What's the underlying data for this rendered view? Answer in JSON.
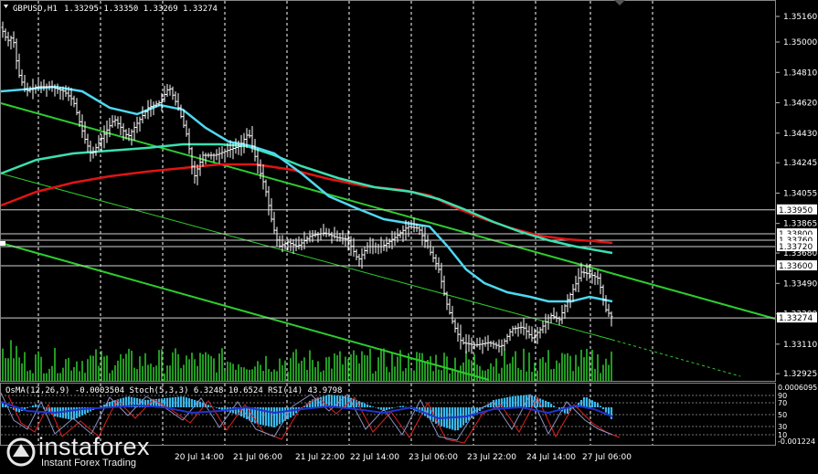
{
  "header": {
    "symbol": "GBPUSD,H1",
    "ohlc": "1.33295 1.33350 1.33269 1.33274"
  },
  "price_axis": {
    "ticks": [
      "1.35160",
      "1.35000",
      "1.34810",
      "1.34620",
      "1.34430",
      "1.34245",
      "1.34055",
      "1.33865",
      "1.33680",
      "1.33490",
      "1.33300",
      "1.33110",
      "1.32925"
    ],
    "levels": [
      {
        "value": "1.33950",
        "color": "#ffffff",
        "text": "#000000"
      },
      {
        "value": "1.33800",
        "color": "#ffffff",
        "text": "#000000"
      },
      {
        "value": "1.33760",
        "color": "#ffffff",
        "text": "#000000"
      },
      {
        "value": "1.33720",
        "color": "#ffffff",
        "text": "#000000"
      },
      {
        "value": "1.33600",
        "color": "#ffffff",
        "text": "#000000"
      },
      {
        "value": "1.33274",
        "color": "#ffffff",
        "text": "#000000"
      }
    ]
  },
  "indicator": {
    "label": "OsMA(12,26,9) -0.0003504  Stoch(5,3,3) 6.3248 10.6524  RSI(14) 43.9798",
    "scale": [
      "0.0006095",
      "90",
      "70",
      "50",
      "30",
      "10",
      "-0.001224"
    ]
  },
  "time_axis": {
    "labels": [
      "20 Jul 14:00",
      "21 Jul 06:00",
      "21 Jul 22:00",
      "22 Jul 14:00",
      "23 Jul 06:00",
      "23 Jul 22:00",
      "24 Jul 14:00",
      "27 Jul 06:00"
    ]
  },
  "branding": {
    "name": "instaforex",
    "tagline": "Instant Forex Trading"
  },
  "colors": {
    "background": "#000000",
    "candles": "#ffffff",
    "ema_fast": "#4fd8f0",
    "ema_mid": "#3ce0b0",
    "ema_slow": "#e01414",
    "channel": "#2ecc2e",
    "volume": "#2ecc2e",
    "osma": "#39b8ee",
    "stoch_main": "#2233cc",
    "stoch_signal": "#e02020",
    "rsi": "#c8c8c8"
  }
}
